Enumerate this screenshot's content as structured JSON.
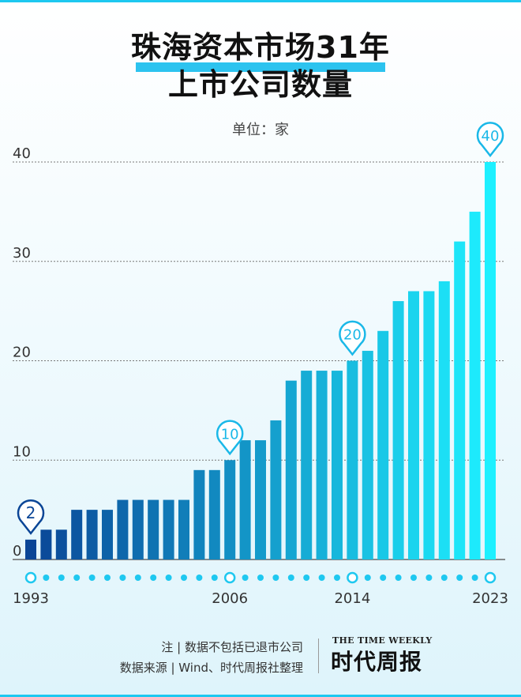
{
  "title_line1": "珠海资本市场31年",
  "title_line2": "上市公司数量",
  "unit": "单位：家",
  "note": "注 | 数据不包括已退市公司",
  "source": "数据来源 | Wind、时代周报社整理",
  "logo_en": "THE TIME WEEKLY",
  "logo_cn": "时代周报",
  "colors": {
    "accent": "#1ec8f0",
    "bar_start": "#0a4596",
    "bar_end": "#1ef0ff"
  },
  "chart_data": {
    "type": "bar",
    "categories": [
      "1993",
      "1994",
      "1995",
      "1996",
      "1997",
      "1998",
      "1999",
      "2000",
      "2001",
      "2002",
      "2003",
      "2004",
      "2005",
      "2006",
      "2007",
      "2008",
      "2009",
      "2010",
      "2011",
      "2012",
      "2013",
      "2014",
      "2015",
      "2016",
      "2017",
      "2018",
      "2019",
      "2020",
      "2021",
      "2022",
      "2023"
    ],
    "values": [
      2,
      3,
      3,
      5,
      5,
      5,
      6,
      6,
      6,
      6,
      6,
      9,
      9,
      10,
      12,
      12,
      14,
      18,
      19,
      19,
      19,
      20,
      21,
      23,
      26,
      27,
      27,
      28,
      32,
      35,
      40
    ],
    "x_tick_labels": [
      "1993",
      "2006",
      "2014",
      "2023"
    ],
    "y_ticks": [
      0,
      10,
      20,
      30,
      40
    ],
    "ylim": [
      0,
      40
    ],
    "grid": true,
    "callouts": [
      {
        "year": "1993",
        "label": "2"
      },
      {
        "year": "2006",
        "label": "10"
      },
      {
        "year": "2014",
        "label": "20"
      },
      {
        "year": "2023",
        "label": "40"
      }
    ]
  }
}
